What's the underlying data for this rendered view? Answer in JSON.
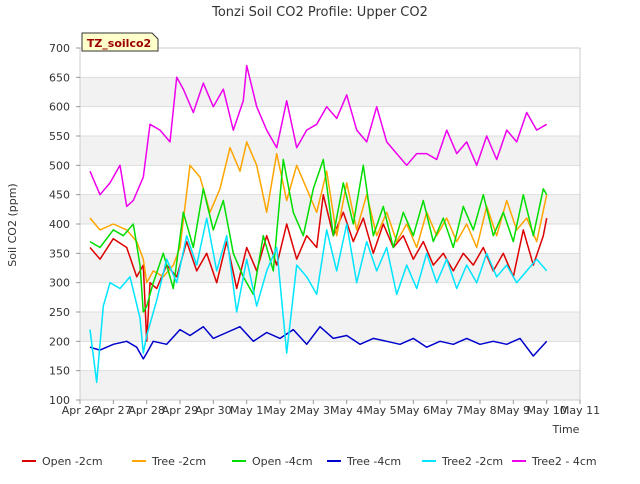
{
  "chart_data": {
    "type": "line",
    "title": "Tonzi Soil CO2 Profile: Upper CO2",
    "xlabel": "Time",
    "ylabel": "Soil CO2 (ppm)",
    "badge": "TZ_soilco2",
    "ylim": [
      100,
      700
    ],
    "yticks": [
      100,
      150,
      200,
      250,
      300,
      350,
      400,
      450,
      500,
      550,
      600,
      650,
      700
    ],
    "xlim": [
      0,
      15
    ],
    "xticks": [
      {
        "v": 0,
        "label": "Apr 26"
      },
      {
        "v": 1,
        "label": "Apr 27"
      },
      {
        "v": 2,
        "label": "Apr 28"
      },
      {
        "v": 3,
        "label": "Apr 29"
      },
      {
        "v": 4,
        "label": "Apr 30"
      },
      {
        "v": 5,
        "label": "May 1"
      },
      {
        "v": 6,
        "label": "May 2"
      },
      {
        "v": 7,
        "label": "May 3"
      },
      {
        "v": 8,
        "label": "May 4"
      },
      {
        "v": 9,
        "label": "May 5"
      },
      {
        "v": 10,
        "label": "May 6"
      },
      {
        "v": 11,
        "label": "May 7"
      },
      {
        "v": 12,
        "label": "May 8"
      },
      {
        "v": 13,
        "label": "May 9"
      },
      {
        "v": 14,
        "label": "May 10"
      },
      {
        "v": 15,
        "label": "May 11"
      }
    ],
    "grid": true,
    "legend_position": "bottom",
    "series": [
      {
        "name": "Open -2cm",
        "color": "#dd0000",
        "x": [
          0.3,
          0.6,
          1.0,
          1.4,
          1.7,
          1.9,
          2.0,
          2.1,
          2.3,
          2.6,
          2.9,
          3.2,
          3.5,
          3.8,
          4.1,
          4.4,
          4.7,
          5.0,
          5.3,
          5.6,
          5.9,
          6.2,
          6.5,
          6.8,
          7.1,
          7.3,
          7.6,
          7.9,
          8.2,
          8.5,
          8.8,
          9.1,
          9.4,
          9.7,
          10.0,
          10.3,
          10.6,
          10.9,
          11.2,
          11.5,
          11.8,
          12.1,
          12.4,
          12.7,
          13.0,
          13.3,
          13.6,
          13.9,
          14.0
        ],
        "y": [
          360,
          340,
          375,
          360,
          310,
          330,
          200,
          300,
          290,
          330,
          310,
          370,
          320,
          350,
          300,
          370,
          290,
          360,
          320,
          380,
          330,
          400,
          340,
          380,
          360,
          450,
          380,
          420,
          370,
          410,
          350,
          400,
          360,
          380,
          340,
          370,
          330,
          350,
          320,
          350,
          330,
          360,
          320,
          350,
          310,
          390,
          330,
          380,
          410
        ]
      },
      {
        "name": "Tree -2cm",
        "color": "#ffa500",
        "x": [
          0.3,
          0.6,
          1.0,
          1.4,
          1.7,
          1.9,
          2.0,
          2.2,
          2.5,
          2.8,
          3.0,
          3.3,
          3.6,
          3.9,
          4.2,
          4.5,
          4.8,
          5.0,
          5.3,
          5.6,
          5.9,
          6.2,
          6.5,
          6.8,
          7.1,
          7.4,
          7.7,
          8.0,
          8.3,
          8.6,
          8.9,
          9.2,
          9.5,
          9.8,
          10.1,
          10.4,
          10.7,
          11.0,
          11.3,
          11.6,
          11.9,
          12.2,
          12.5,
          12.8,
          13.1,
          13.4,
          13.7,
          14.0
        ],
        "y": [
          410,
          390,
          400,
          390,
          370,
          340,
          300,
          320,
          310,
          330,
          360,
          500,
          480,
          420,
          460,
          530,
          490,
          540,
          500,
          420,
          520,
          440,
          500,
          460,
          420,
          490,
          380,
          470,
          390,
          450,
          380,
          420,
          370,
          400,
          360,
          420,
          380,
          410,
          370,
          400,
          360,
          430,
          380,
          440,
          390,
          410,
          370,
          450
        ]
      },
      {
        "name": "Open -4cm",
        "color": "#00dd00",
        "x": [
          0.3,
          0.6,
          1.0,
          1.3,
          1.6,
          1.8,
          1.9,
          2.0,
          2.2,
          2.5,
          2.8,
          3.1,
          3.4,
          3.7,
          4.0,
          4.3,
          4.6,
          4.9,
          5.2,
          5.5,
          5.8,
          6.1,
          6.4,
          6.7,
          7.0,
          7.3,
          7.6,
          7.9,
          8.2,
          8.5,
          8.8,
          9.1,
          9.4,
          9.7,
          10.0,
          10.3,
          10.6,
          10.9,
          11.2,
          11.5,
          11.8,
          12.1,
          12.4,
          12.7,
          13.0,
          13.3,
          13.6,
          13.9,
          14.0
        ],
        "y": [
          370,
          360,
          390,
          380,
          400,
          330,
          250,
          260,
          300,
          350,
          290,
          420,
          360,
          460,
          390,
          440,
          350,
          310,
          280,
          380,
          320,
          510,
          420,
          380,
          460,
          510,
          380,
          470,
          400,
          500,
          380,
          430,
          360,
          420,
          380,
          440,
          370,
          410,
          360,
          430,
          390,
          450,
          380,
          420,
          370,
          450,
          380,
          460,
          450
        ]
      },
      {
        "name": "Tree -4cm",
        "color": "#0000cc",
        "x": [
          0.3,
          0.6,
          1.0,
          1.4,
          1.7,
          1.9,
          2.0,
          2.2,
          2.6,
          3.0,
          3.3,
          3.7,
          4.0,
          4.4,
          4.8,
          5.2,
          5.6,
          6.0,
          6.4,
          6.8,
          7.2,
          7.6,
          8.0,
          8.4,
          8.8,
          9.2,
          9.6,
          10.0,
          10.4,
          10.8,
          11.2,
          11.6,
          12.0,
          12.4,
          12.8,
          13.2,
          13.6,
          14.0
        ],
        "y": [
          190,
          185,
          195,
          200,
          190,
          170,
          180,
          200,
          195,
          220,
          210,
          225,
          205,
          215,
          225,
          200,
          215,
          205,
          220,
          195,
          225,
          205,
          210,
          195,
          205,
          200,
          195,
          205,
          190,
          200,
          195,
          205,
          195,
          200,
          195,
          205,
          175,
          200
        ]
      },
      {
        "name": "Tree2 -2cm",
        "color": "#00e5ff",
        "x": [
          0.3,
          0.5,
          0.7,
          0.9,
          1.2,
          1.5,
          1.8,
          1.9,
          2.0,
          2.3,
          2.6,
          2.9,
          3.2,
          3.5,
          3.8,
          4.1,
          4.4,
          4.7,
          5.0,
          5.3,
          5.6,
          5.9,
          6.2,
          6.5,
          6.8,
          7.1,
          7.4,
          7.7,
          8.0,
          8.3,
          8.6,
          8.9,
          9.2,
          9.5,
          9.8,
          10.1,
          10.4,
          10.7,
          11.0,
          11.3,
          11.6,
          11.9,
          12.2,
          12.5,
          12.8,
          13.1,
          13.4,
          13.7,
          14.0
        ],
        "y": [
          220,
          130,
          260,
          300,
          290,
          310,
          240,
          180,
          210,
          270,
          340,
          300,
          380,
          330,
          410,
          320,
          380,
          250,
          340,
          260,
          320,
          360,
          180,
          330,
          310,
          280,
          390,
          320,
          400,
          300,
          370,
          320,
          360,
          280,
          330,
          290,
          350,
          300,
          340,
          290,
          330,
          300,
          350,
          310,
          330,
          300,
          320,
          340,
          320
        ]
      },
      {
        "name": "Tree2 - 4cm",
        "color": "#ee00ee",
        "x": [
          0.3,
          0.6,
          0.9,
          1.2,
          1.4,
          1.6,
          1.9,
          2.1,
          2.4,
          2.7,
          2.9,
          3.1,
          3.4,
          3.7,
          4.0,
          4.3,
          4.6,
          4.9,
          5.0,
          5.3,
          5.6,
          5.9,
          6.2,
          6.5,
          6.8,
          7.1,
          7.4,
          7.7,
          8.0,
          8.3,
          8.6,
          8.9,
          9.2,
          9.5,
          9.8,
          10.1,
          10.4,
          10.7,
          11.0,
          11.3,
          11.6,
          11.9,
          12.2,
          12.5,
          12.8,
          13.1,
          13.4,
          13.7,
          14.0
        ],
        "y": [
          490,
          450,
          470,
          500,
          430,
          440,
          480,
          570,
          560,
          540,
          650,
          630,
          590,
          640,
          600,
          630,
          560,
          610,
          670,
          600,
          560,
          530,
          610,
          530,
          560,
          570,
          600,
          580,
          620,
          560,
          540,
          600,
          540,
          520,
          500,
          520,
          520,
          510,
          560,
          520,
          540,
          500,
          550,
          510,
          560,
          540,
          590,
          560,
          570
        ]
      }
    ]
  }
}
